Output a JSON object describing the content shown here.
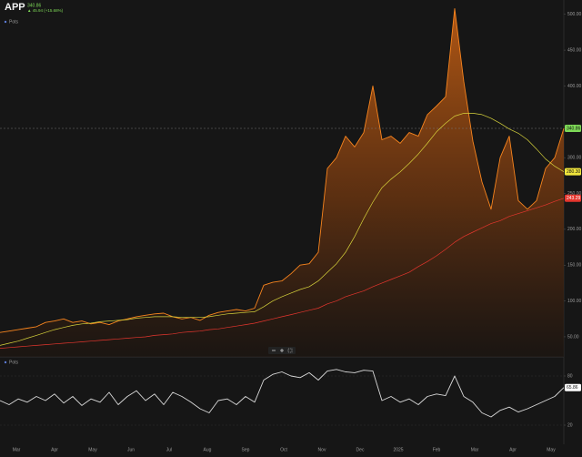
{
  "chart_data": [
    {
      "type": "area",
      "title": "APP",
      "header_price": "340.86",
      "header_change": "▲ 45.94 (+15.68%)",
      "legend_label": "Pots",
      "xticks": [
        "Mar",
        "Apr",
        "May",
        "Jun",
        "Jul",
        "Aug",
        "Sep",
        "Oct",
        "Nov",
        "Dec",
        "2025",
        "Feb",
        "Mar",
        "Apr",
        "May"
      ],
      "ylim": [
        22,
        520
      ],
      "yticks": [
        {
          "value": 50,
          "label": "50.00"
        },
        {
          "value": 100,
          "label": "100.00"
        },
        {
          "value": 150,
          "label": "150.00"
        },
        {
          "value": 200,
          "label": "200.00"
        },
        {
          "value": 250,
          "label": "250.00"
        },
        {
          "value": 300,
          "label": "300.00"
        },
        {
          "value": 400,
          "label": "400.00"
        },
        {
          "value": 450,
          "label": "450.00"
        },
        {
          "value": 500,
          "label": "500.00"
        }
      ],
      "grid": false,
      "series": [
        {
          "name": "Price",
          "color": "#f7841e",
          "label_color": "#7ed957",
          "last_label": "340.86",
          "values": [
            56,
            58,
            60,
            62,
            64,
            70,
            72,
            75,
            70,
            72,
            68,
            70,
            67,
            72,
            75,
            78,
            80,
            82,
            83,
            78,
            75,
            77,
            73,
            80,
            84,
            86,
            88,
            86,
            90,
            122,
            126,
            128,
            138,
            150,
            152,
            168,
            285,
            300,
            330,
            315,
            335,
            400,
            325,
            330,
            320,
            335,
            330,
            360,
            372,
            385,
            508,
            406,
            323,
            266,
            228,
            300,
            330,
            240,
            228,
            240,
            285,
            300,
            340.86
          ]
        },
        {
          "name": "MA 50",
          "color": "#d8d43c",
          "label_color": "#f0e63c",
          "last_label": "280.30",
          "values": [
            38,
            41,
            44,
            48,
            52,
            56,
            60,
            63,
            66,
            68,
            69,
            71,
            72,
            73,
            74,
            76,
            77,
            78,
            78,
            78,
            77,
            77,
            77,
            78,
            80,
            82,
            83,
            84,
            85,
            92,
            100,
            106,
            111,
            116,
            120,
            128,
            140,
            152,
            168,
            190,
            215,
            238,
            258,
            270,
            280,
            292,
            305,
            320,
            336,
            348,
            358,
            362,
            362,
            360,
            355,
            348,
            340,
            334,
            325,
            312,
            298,
            288,
            280.3
          ]
        },
        {
          "name": "MA 200",
          "color": "#e5362e",
          "label_color": "#e5362e",
          "last_label": "243.29",
          "values": [
            34,
            35,
            36,
            37,
            38,
            39,
            40,
            41,
            42,
            43,
            44,
            45,
            46,
            47,
            48,
            49,
            50,
            52,
            53,
            54,
            56,
            57,
            58,
            60,
            61,
            63,
            65,
            67,
            69,
            72,
            75,
            78,
            81,
            84,
            87,
            90,
            96,
            100,
            106,
            110,
            114,
            120,
            125,
            130,
            135,
            140,
            148,
            155,
            163,
            172,
            182,
            190,
            196,
            202,
            208,
            212,
            218,
            222,
            226,
            230,
            234,
            239,
            243.29
          ]
        }
      ]
    },
    {
      "type": "line",
      "legend_label": "Pots",
      "ylim": [
        0,
        100
      ],
      "yticks": [
        20,
        80
      ],
      "series": [
        {
          "name": "RSI",
          "color": "#d9d9d9",
          "label_color": "#ffffff",
          "values": [
            50,
            45,
            52,
            48,
            55,
            50,
            58,
            47,
            55,
            44,
            52,
            48,
            60,
            45,
            55,
            62,
            50,
            58,
            45,
            60,
            55,
            48,
            40,
            35,
            50,
            52,
            45,
            55,
            48,
            75,
            82,
            85,
            80,
            78,
            84,
            75,
            86,
            88,
            85,
            84,
            87,
            86,
            50,
            55,
            48,
            52,
            45,
            55,
            58,
            56,
            80,
            55,
            48,
            35,
            30,
            38,
            42,
            36,
            40,
            45,
            50,
            55,
            65.86
          ]
        }
      ]
    }
  ]
}
